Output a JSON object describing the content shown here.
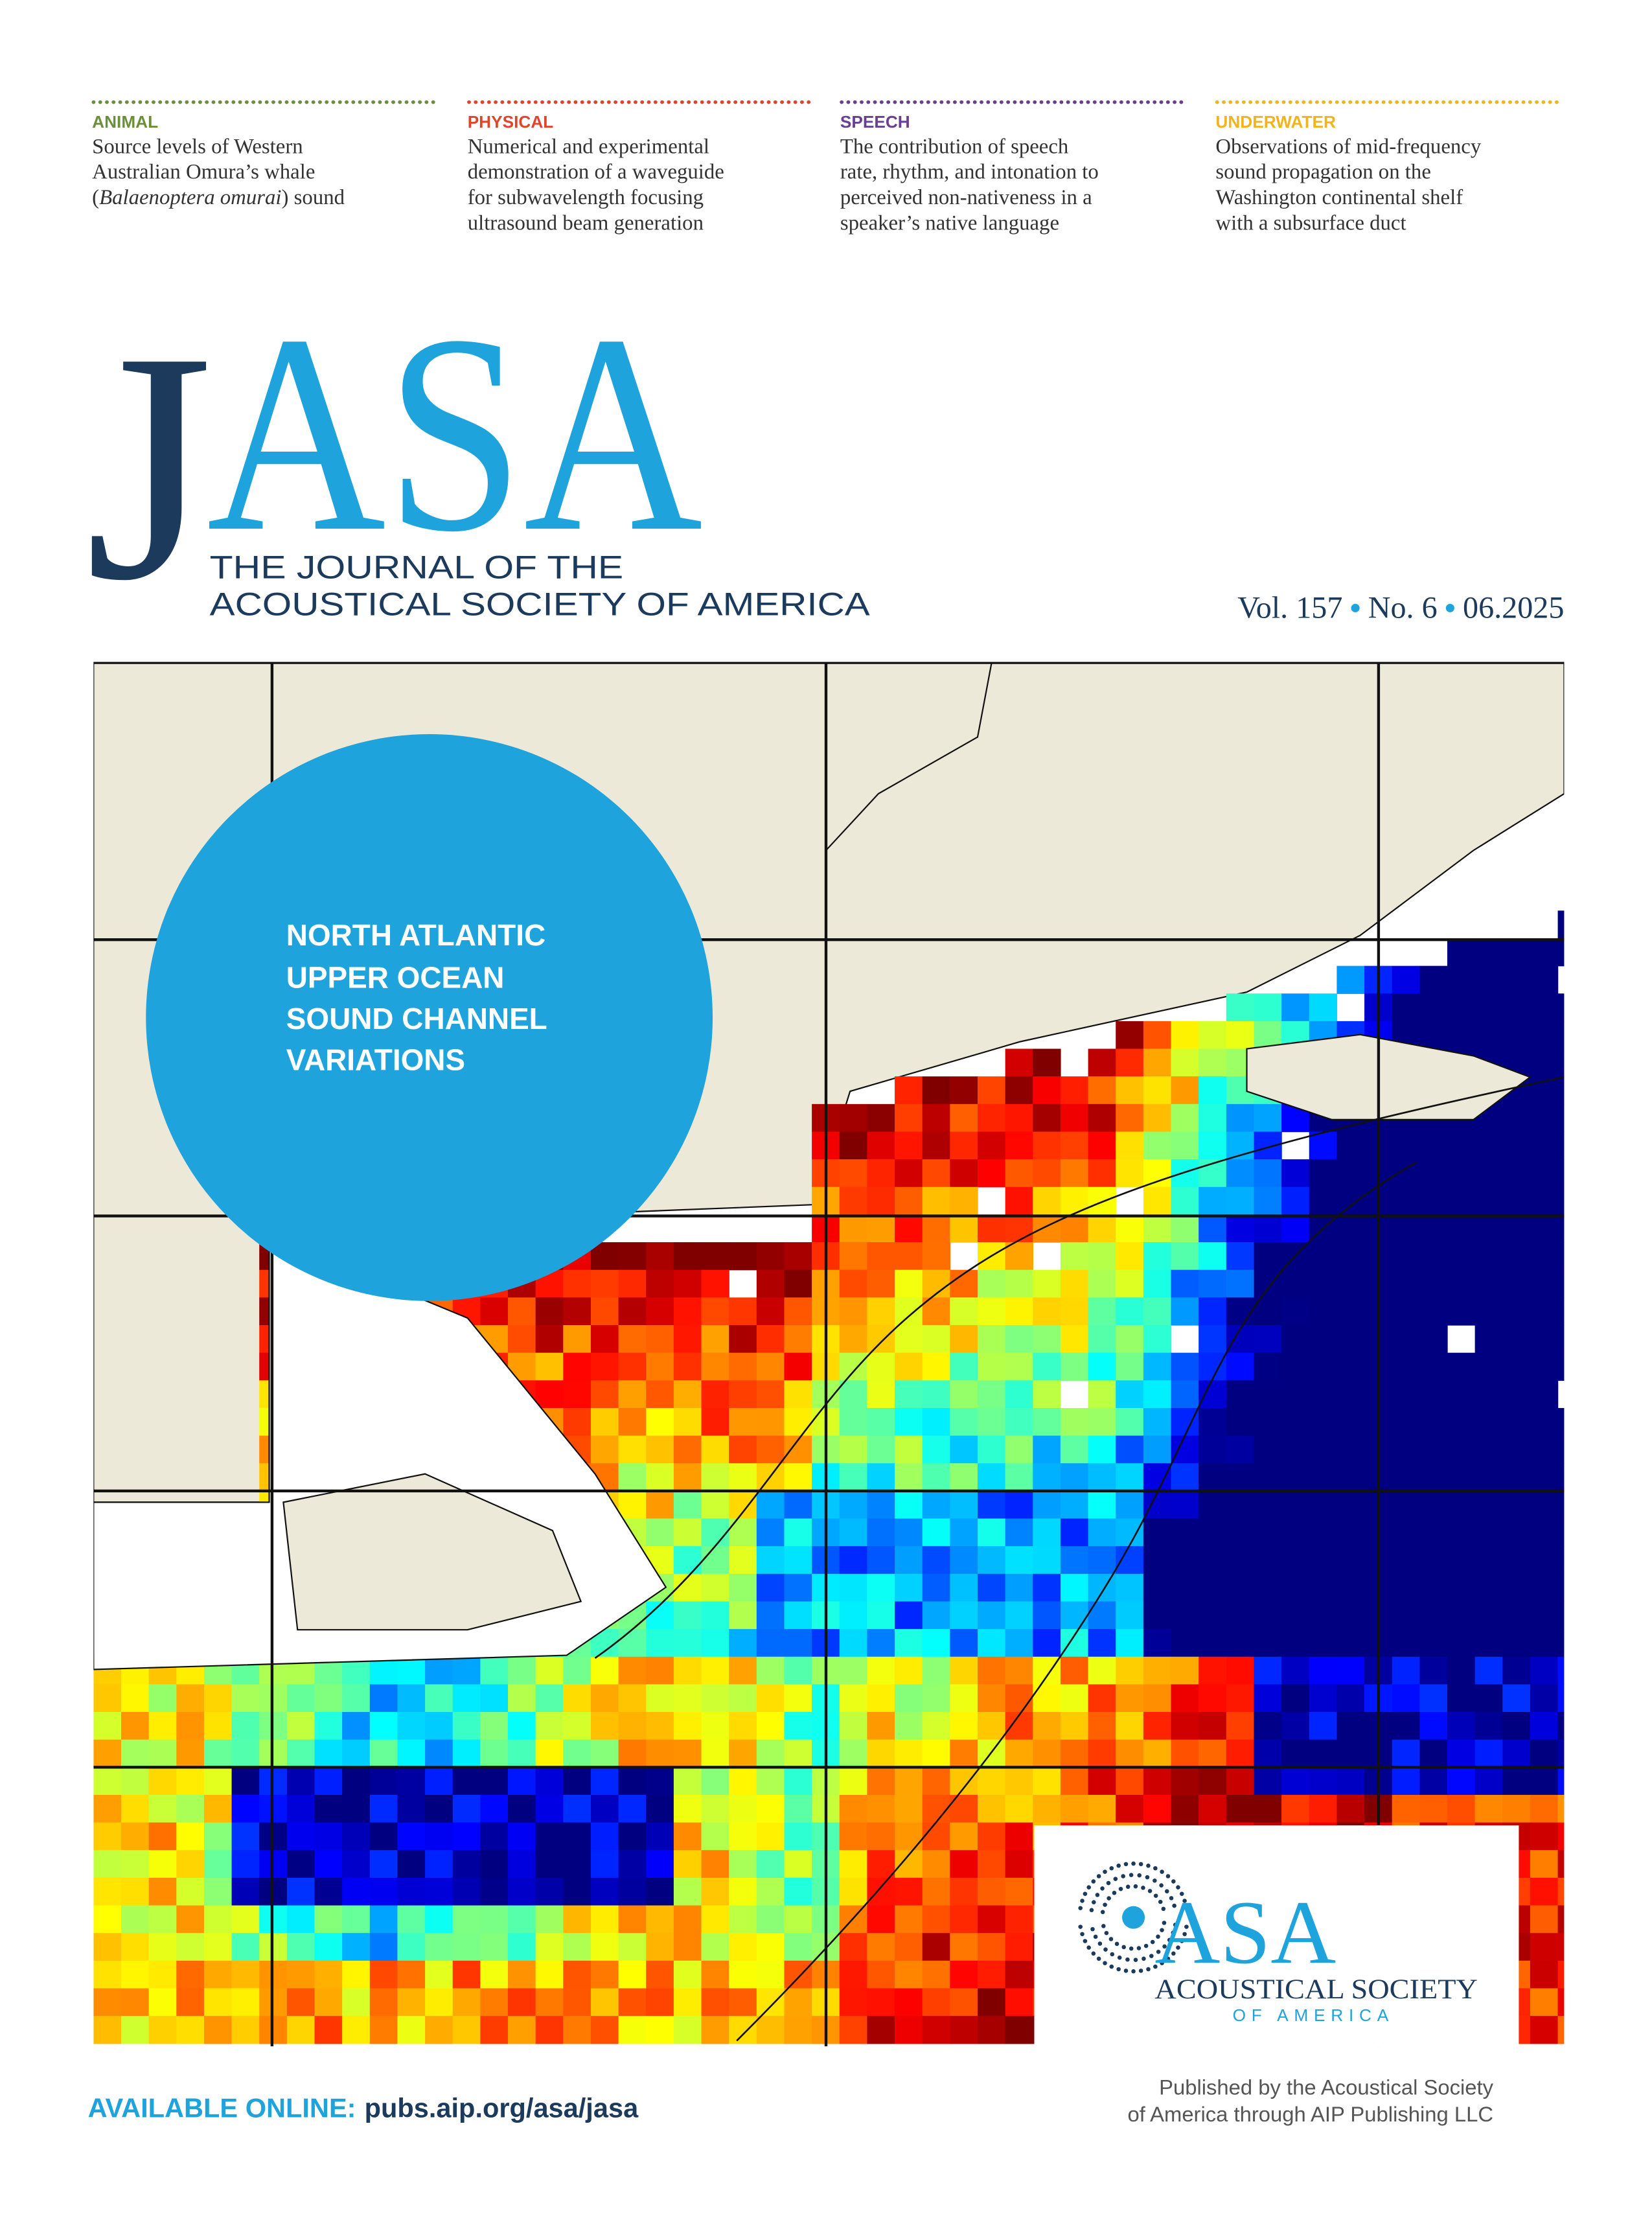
{
  "header": {
    "topics": [
      {
        "category": "ANIMAL",
        "color": "#6b8f3a",
        "lines": [
          "Source levels of Western",
          "Australian Omura’s whale",
          [
            "(",
            "Balaenoptera omurai",
            ") sound"
          ]
        ]
      },
      {
        "category": "PHYSICAL",
        "color": "#e0452b",
        "lines": [
          "Numerical and experimental",
          "demonstration of a waveguide",
          "for subwavelength focusing",
          "ultrasound beam generation"
        ]
      },
      {
        "category": "SPEECH",
        "color": "#6b3f8f",
        "lines": [
          "The contribution of speech",
          "rate, rhythm, and intonation to",
          "perceived non-nativeness in a",
          "speaker’s native language"
        ]
      },
      {
        "category": "UNDERWATER",
        "color": "#f0b41c",
        "lines": [
          "Observations of mid-frequency",
          "sound propagation on the",
          "Washington continental shelf",
          "with a subsurface duct"
        ]
      }
    ]
  },
  "masthead": {
    "logo_first": "J",
    "logo_rest": "ASA",
    "subtitle": [
      "THE JOURNAL OF THE",
      "ACOUSTICAL SOCIETY OF AMERICA"
    ],
    "issue": [
      "Vol. 157",
      "No. 6",
      "06.2025"
    ]
  },
  "feature": {
    "lines": [
      "NORTH ATLANTIC",
      "UPPER OCEAN",
      "SOUND CHANNEL",
      "VARIATIONS"
    ]
  },
  "publisher_logo": {
    "mark": "ASA",
    "name": "ACOUSTICAL SOCIETY",
    "sub": "OF AMERICA"
  },
  "footer": {
    "online_label": "AVAILABLE ONLINE:",
    "url": "pubs.aip.org/asa/jasa",
    "publisher": [
      "Published by the Acoustical Society",
      "of America through AIP Publishing LLC"
    ]
  }
}
